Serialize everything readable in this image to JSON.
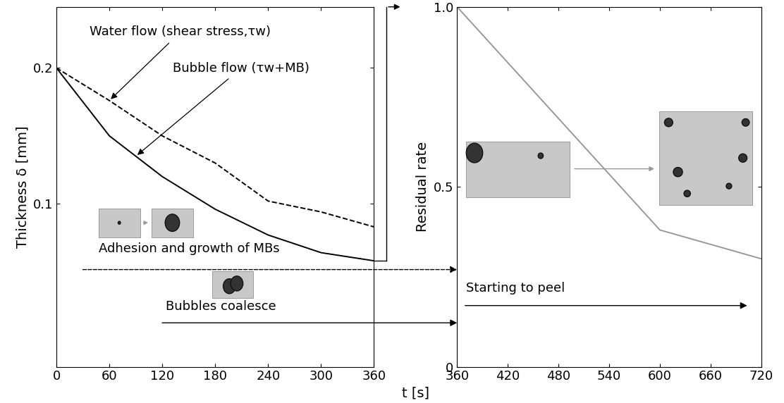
{
  "chart_data": [
    {
      "type": "line",
      "xlabel": "t [s]",
      "ylabel": "Thickness δ [mm]",
      "x": [
        0,
        60,
        120,
        180,
        240,
        300,
        360
      ],
      "series": [
        {
          "name": "Water flow (shear stress,τw)",
          "color": "#000000",
          "line_style": "dashed",
          "values": [
            0.2,
            0.176,
            0.15,
            0.13,
            0.102,
            0.094,
            0.083
          ]
        },
        {
          "name": "Bubble flow (τw+MB)",
          "color": "#000000",
          "line_style": "solid",
          "values": [
            0.2,
            0.15,
            0.12,
            0.096,
            0.077,
            0.064,
            0.058
          ]
        }
      ],
      "xlim": [
        0,
        360
      ],
      "xticks": [
        0,
        60,
        120,
        180,
        240,
        300,
        360
      ],
      "ylim": [
        -0.02,
        0.245
      ],
      "yticks": [
        0.1,
        0.2
      ],
      "annotations": [
        "Adhesion and growth of MBs",
        "Bubbles coalesce"
      ]
    },
    {
      "type": "line",
      "ylabel": "Residual rate",
      "x": [
        360,
        480,
        600,
        720
      ],
      "series": [
        {
          "color": "#999999",
          "line_style": "solid",
          "values": [
            1.0,
            0.69,
            0.38,
            0.3
          ]
        }
      ],
      "xlim": [
        360,
        720
      ],
      "xticks": [
        360,
        420,
        480,
        540,
        600,
        660,
        720
      ],
      "ylim": [
        0,
        1
      ],
      "yticks": [
        0,
        0.5,
        {
          "value": 1,
          "label": "1.0"
        }
      ],
      "annotations": [
        "Starting to peel"
      ]
    }
  ]
}
